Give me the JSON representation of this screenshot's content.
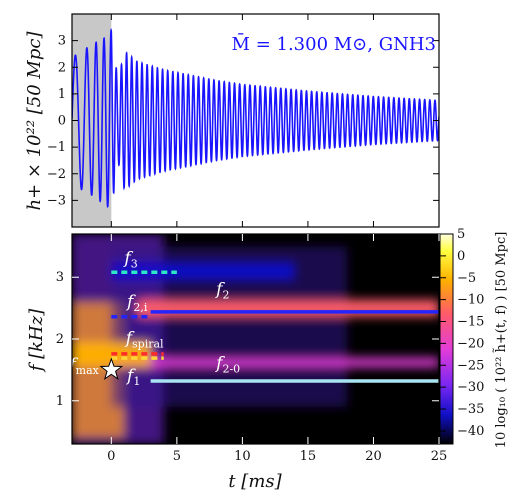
{
  "chart_data": [
    {
      "type": "line",
      "panel": "top",
      "annotation": "M̄ = 1.300 M⊙,  GNH3",
      "ylabel": "h+ × 10²² [50 Mpc]",
      "xlim": [
        -3,
        25
      ],
      "ylim": [
        -4,
        4
      ],
      "y_ticks": [
        -3,
        -2,
        -1,
        0,
        1,
        2,
        3
      ],
      "color": "#1a14ff",
      "shaded_region_t": [
        -3,
        0
      ],
      "shaded_color": "#c8c8c8",
      "series": [
        {
          "t_ms": [
            -3.0,
            -2.5,
            -2.0,
            -1.5,
            -1.0,
            -0.5,
            0.0,
            0.5,
            1.0,
            2.0,
            4.0,
            6.0,
            8.0,
            10.0,
            15.0,
            20.0,
            25.0
          ],
          "envelope": [
            2.4,
            2.5,
            2.7,
            2.8,
            3.0,
            3.1,
            3.4,
            1.5,
            2.6,
            2.2,
            1.9,
            1.7,
            1.5,
            1.35,
            1.1,
            0.9,
            0.75
          ]
        }
      ]
    },
    {
      "type": "heatmap",
      "panel": "bottom",
      "xlabel": "t [ms]",
      "ylabel": "f [kHz]",
      "xlim": [
        -3,
        25
      ],
      "ylim": [
        0.3,
        3.7
      ],
      "x_ticks": [
        0,
        5,
        10,
        15,
        20,
        25
      ],
      "y_ticks": [
        1,
        2,
        3
      ],
      "colorbar": {
        "label": "10 log₁₀ ( 10²² h̃+(t, f) )  [50 Mpc]",
        "range": [
          -43,
          5
        ],
        "ticks": [
          5,
          0,
          -5,
          -10,
          -15,
          -20,
          -25,
          -30,
          -35,
          -40
        ]
      },
      "annotations": [
        {
          "label": "f",
          "sub": "3",
          "t": 1.0,
          "f": 3.22,
          "line": {
            "t": [
              0.0,
              5.0
            ],
            "f": 3.08,
            "color": "#2ce8c6",
            "dashed": true
          }
        },
        {
          "label": "f",
          "sub": "2,i",
          "t": 1.2,
          "f": 2.52,
          "line": {
            "t": [
              0.0,
              3.0
            ],
            "f": 2.36,
            "color": "#2424ff",
            "dashed": true
          }
        },
        {
          "label": "f",
          "sub": "2",
          "t": 8.0,
          "f": 2.72,
          "line": {
            "t": [
              3.0,
              25.0
            ],
            "f": 2.44,
            "color": "#2424ff",
            "dashed": false
          }
        },
        {
          "label": "f",
          "sub": "spiral",
          "t": 1.1,
          "f": 1.93,
          "line": {
            "t": [
              0.0,
              4.0
            ],
            "f": 1.76,
            "color": "#ff2b2b",
            "dashed": true
          }
        },
        {
          "label": "f",
          "sub": "",
          "t": 0.0,
          "f": 1.72,
          "line": {
            "t": [
              0.0,
              4.0
            ],
            "f": 1.69,
            "color": "#ffd43b",
            "dashed": true
          }
        },
        {
          "label": "f",
          "sub": "max",
          "t": -3.2,
          "f": 1.5,
          "line": null
        },
        {
          "label": "f",
          "sub": "1",
          "t": 1.2,
          "f": 1.32,
          "line": {
            "t": [
              3.0,
              25.0
            ],
            "f": 1.32,
            "color": "#a9e4f2",
            "dashed": false
          }
        },
        {
          "label": "f",
          "sub": "2-0",
          "t": 8.0,
          "f": 1.52,
          "line": null
        }
      ],
      "marker": {
        "shape": "star",
        "t": 0.0,
        "f": 1.5
      },
      "bands": [
        {
          "f": 2.5,
          "t_range": [
            2,
            25
          ],
          "level": 3,
          "width": 0.1
        },
        {
          "f": 2.5,
          "t_range": [
            2,
            25
          ],
          "level": -8,
          "width": 0.28
        },
        {
          "f": 1.62,
          "t_range": [
            0,
            25
          ],
          "level": -15,
          "width": 0.16
        },
        {
          "f": 1.75,
          "t_range": [
            -3,
            3
          ],
          "level": 0,
          "width": 0.4
        },
        {
          "f": 3.1,
          "t_range": [
            0,
            14
          ],
          "level": -30,
          "width": 0.3
        }
      ]
    }
  ]
}
